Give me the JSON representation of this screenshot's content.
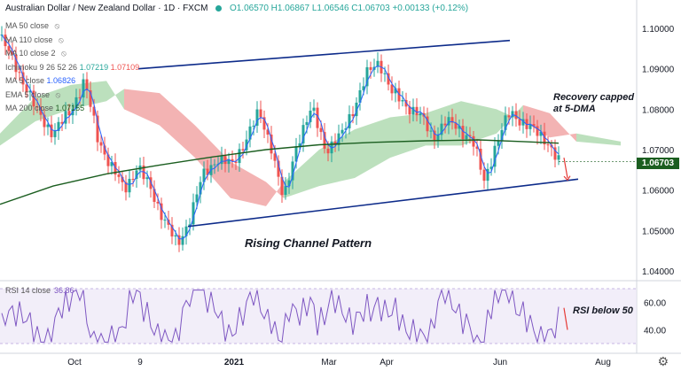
{
  "header": {
    "symbol": "Australian Dollar / New Zealand Dollar · 1D · FXCM",
    "ohlc": "O1.06570 H1.06867 L1.06546 C1.06703 +0.00133 (+0.12%)"
  },
  "indicators": [
    {
      "label": "MA 50 close",
      "v1": "",
      "v2": ""
    },
    {
      "label": "MA 110 close",
      "v1": "",
      "v2": ""
    },
    {
      "label": "MA 10 close 2",
      "v1": "",
      "v2": ""
    },
    {
      "label": "Ichimoku 9 26 52 26",
      "v1": "1.07219",
      "v2": "1.07109"
    },
    {
      "label": "MA 5 close",
      "v1": "1.06826",
      "v2": ""
    },
    {
      "label": "EMA 5 close",
      "v1": "",
      "v2": ""
    },
    {
      "label": "MA 200 close",
      "v1": "1.07155",
      "v2": ""
    }
  ],
  "price_axis": {
    "labels": [
      "1.10000",
      "1.09000",
      "1.08000",
      "1.07000",
      "1.06000",
      "1.05000",
      "1.04000"
    ],
    "last_price": "1.06703"
  },
  "annotations": {
    "recovery": "Recovery capped at 5-DMA",
    "channel": "Rising Channel Pattern",
    "rsi_note": "RSI below 50"
  },
  "rsi": {
    "label": "RSI 14 close",
    "value": "36.86",
    "axis_labels": [
      "60.00",
      "40.00"
    ]
  },
  "time_axis": {
    "labels": [
      "Oct",
      "9",
      "2021",
      "Mar",
      "Apr",
      "Jun",
      "Aug"
    ]
  },
  "colors": {
    "up": "#26a69a",
    "down": "#ef5350",
    "ma200": "#1b5e20",
    "ma5": "#2962ff",
    "channel": "#0d2b8a",
    "rsi": "#7e57c2",
    "cloud_bull": "#a5d6a7",
    "cloud_bear": "#ef9a9a"
  },
  "icons": {
    "visibility": "eye-off-icon",
    "settings": "gear-icon"
  }
}
